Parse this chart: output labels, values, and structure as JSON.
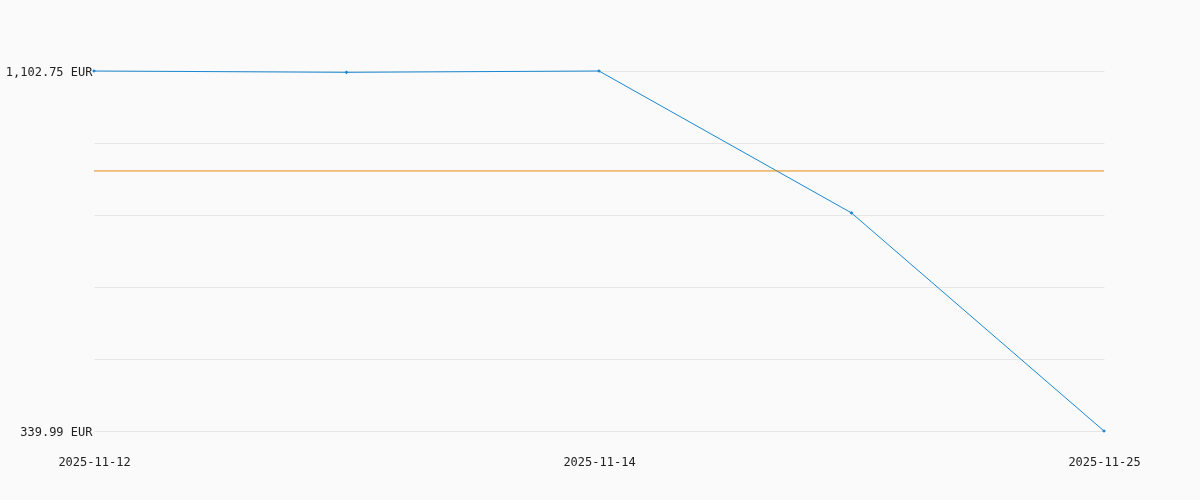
{
  "chart_data": {
    "type": "line",
    "categories": [
      "2025-11-12",
      null,
      "2025-11-14",
      null,
      "2025-11-25"
    ],
    "series": [
      {
        "color": "#1a87d0",
        "values": [
          1102.75,
          1100,
          1102.75,
          802,
          339.99
        ]
      }
    ],
    "ylim": [
      339.99,
      1102.75
    ],
    "yticks": [
      {
        "value": 339.99,
        "label": "339.99 EUR"
      },
      {
        "value": 492.54,
        "label": null
      },
      {
        "value": 645.09,
        "label": null
      },
      {
        "value": 797.65,
        "label": null
      },
      {
        "value": 950.2,
        "label": null
      },
      {
        "value": 1102.75,
        "label": "1,102.75 EUR"
      }
    ],
    "ref_lines": [
      {
        "axis": "y",
        "value": 891,
        "color": "#e8890c"
      }
    ],
    "grid": "y",
    "marker": "diamond",
    "line_style": "solid"
  }
}
